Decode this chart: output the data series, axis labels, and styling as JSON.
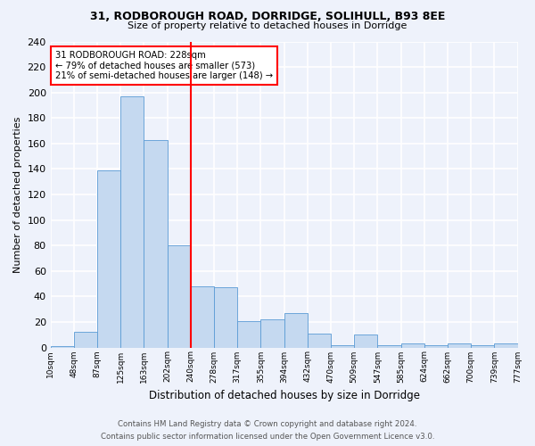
{
  "title1": "31, RODBOROUGH ROAD, DORRIDGE, SOLIHULL, B93 8EE",
  "title2": "Size of property relative to detached houses in Dorridge",
  "xlabel": "Distribution of detached houses by size in Dorridge",
  "ylabel": "Number of detached properties",
  "bar_values": [
    1,
    12,
    139,
    197,
    163,
    80,
    48,
    47,
    21,
    22,
    27,
    11,
    2,
    10,
    2,
    3,
    2,
    3,
    2,
    3
  ],
  "bin_labels": [
    "10sqm",
    "48sqm",
    "87sqm",
    "125sqm",
    "163sqm",
    "202sqm",
    "240sqm",
    "278sqm",
    "317sqm",
    "355sqm",
    "394sqm",
    "432sqm",
    "470sqm",
    "509sqm",
    "547sqm",
    "585sqm",
    "624sqm",
    "662sqm",
    "700sqm",
    "739sqm",
    "777sqm"
  ],
  "bar_color": "#c5d9f0",
  "bar_edge_color": "#5b9bd5",
  "vline_color": "red",
  "annotation_text": "31 RODBOROUGH ROAD: 228sqm\n← 79% of detached houses are smaller (573)\n21% of semi-detached houses are larger (148) →",
  "annotation_box_color": "white",
  "annotation_box_edge": "red",
  "ylim": [
    0,
    240
  ],
  "yticks": [
    0,
    20,
    40,
    60,
    80,
    100,
    120,
    140,
    160,
    180,
    200,
    220,
    240
  ],
  "footer1": "Contains HM Land Registry data © Crown copyright and database right 2024.",
  "footer2": "Contains public sector information licensed under the Open Government Licence v3.0.",
  "bg_color": "#eef2fb",
  "grid_color": "#ffffff"
}
